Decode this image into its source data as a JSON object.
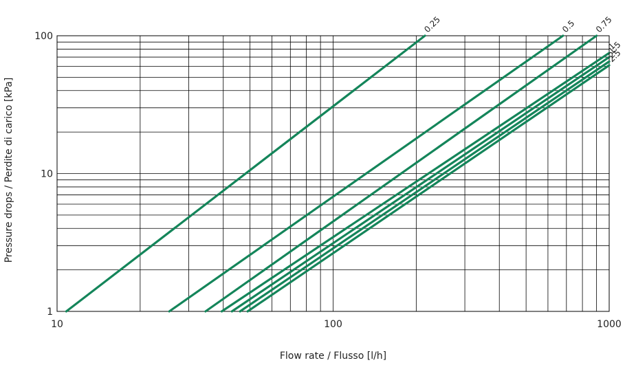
{
  "chart_data": {
    "type": "line",
    "xscale": "log",
    "yscale": "log",
    "xlim": [
      10,
      1000
    ],
    "ylim": [
      1,
      100
    ],
    "xlabel": "Flow rate / Flusso [l/h]",
    "ylabel": "Pressure drops / Perdite di carico [kPa]",
    "x_ticks": [
      "10",
      "100",
      "1000"
    ],
    "y_ticks": [
      "1",
      "10",
      "100"
    ],
    "grid": true,
    "line_color": "#14855A",
    "series": [
      {
        "name": "0.25",
        "x": [
          10.8,
          215
        ],
        "y": [
          1,
          100
        ]
      },
      {
        "name": "0.5",
        "x": [
          25.5,
          680
        ],
        "y": [
          1,
          100
        ]
      },
      {
        "name": "0.75",
        "x": [
          34.5,
          900
        ],
        "y": [
          1,
          100
        ]
      },
      {
        "name": "1",
        "x": [
          39.5,
          1000
        ],
        "y": [
          1,
          75
        ]
      },
      {
        "name": "1.5",
        "x": [
          43,
          1000
        ],
        "y": [
          1,
          70
        ]
      },
      {
        "name": "2",
        "x": [
          46,
          1000
        ],
        "y": [
          1,
          65
        ]
      },
      {
        "name": "2.5",
        "x": [
          49,
          1000
        ],
        "y": [
          1,
          61
        ]
      }
    ],
    "label_texts": [
      "0.25",
      "0.5",
      "0.75",
      "1",
      "1.5",
      "2",
      "2.5"
    ]
  }
}
